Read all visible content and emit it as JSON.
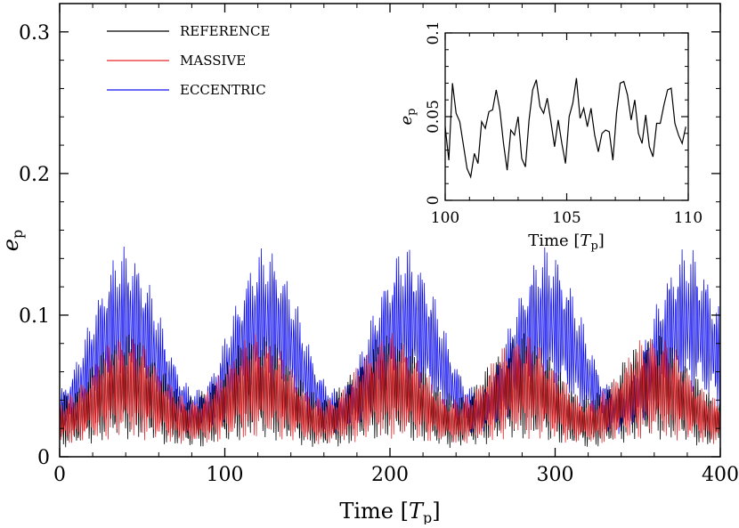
{
  "chart_data": [
    {
      "type": "line",
      "xlabel": "Time [T_p]",
      "xlabel_parts": {
        "main": "Time [",
        "var": "T",
        "sub": "p",
        "close": "]"
      },
      "ylabel_parts": {
        "var": "e",
        "sub": "p"
      },
      "xlim": [
        0,
        400
      ],
      "ylim": [
        0,
        0.32
      ],
      "x_ticks": [
        0,
        100,
        200,
        300,
        400
      ],
      "x_tick_labels": [
        "0",
        "100",
        "200",
        "300",
        "400"
      ],
      "y_ticks": [
        0,
        0.1,
        0.2,
        0.3
      ],
      "y_tick_labels": [
        "0",
        "0.1",
        "0.2",
        "0.3"
      ],
      "grid": false,
      "legend_position": "top-left",
      "series": [
        {
          "name": "REFERENCE",
          "color": "#000000",
          "mean_period": 80,
          "mean_min": 0.025,
          "mean_max": 0.05,
          "oscillation_period": 1.3,
          "oscillation_amplitude_min": 0.014,
          "oscillation_amplitude_max": 0.028
        },
        {
          "name": "MASSIVE",
          "color": "#e8262b",
          "mean_period": 80,
          "mean_min": 0.025,
          "mean_max": 0.05,
          "oscillation_period": 1.3,
          "oscillation_amplitude_min": 0.012,
          "oscillation_amplitude_max": 0.028
        },
        {
          "name": "ECCENTRIC",
          "color": "#1010ee",
          "mean_period": 85,
          "mean_min": 0.032,
          "mean_max": 0.095,
          "oscillation_period": 1.3,
          "oscillation_amplitude_min": 0.012,
          "oscillation_amplitude_max": 0.04
        }
      ]
    },
    {
      "type": "line",
      "panel": "inset",
      "xlabel": "Time [T_p]",
      "xlabel_parts": {
        "main": "Time [",
        "var": "T",
        "sub": "p",
        "close": "]"
      },
      "ylabel_parts": {
        "var": "e",
        "sub": "p"
      },
      "xlim": [
        100,
        110
      ],
      "ylim": [
        0,
        0.1
      ],
      "x_ticks": [
        100,
        105,
        110
      ],
      "x_tick_labels": [
        "100",
        "105",
        "110"
      ],
      "y_ticks": [
        0,
        0.05,
        0.1
      ],
      "y_tick_labels": [
        "0",
        "0.05",
        "0.1"
      ],
      "series": [
        {
          "name": "REFERENCE",
          "color": "#000000",
          "x": [
            100.0,
            100.15,
            100.3,
            100.45,
            100.6,
            100.75,
            100.9,
            101.05,
            101.2,
            101.35,
            101.5,
            101.65,
            101.8,
            101.95,
            102.1,
            102.25,
            102.4,
            102.55,
            102.7,
            102.85,
            103.0,
            103.15,
            103.3,
            103.45,
            103.6,
            103.75,
            103.9,
            104.05,
            104.2,
            104.35,
            104.5,
            104.65,
            104.8,
            104.95,
            105.1,
            105.25,
            105.4,
            105.55,
            105.7,
            105.85,
            106.0,
            106.15,
            106.3,
            106.45,
            106.6,
            106.75,
            106.9,
            107.05,
            107.2,
            107.35,
            107.5,
            107.65,
            107.8,
            107.95,
            108.1,
            108.25,
            108.4,
            108.55,
            108.7,
            108.85,
            109.0,
            109.15,
            109.3,
            109.45,
            109.6,
            109.75,
            109.9
          ],
          "y": [
            0.044,
            0.024,
            0.07,
            0.052,
            0.047,
            0.033,
            0.019,
            0.014,
            0.028,
            0.022,
            0.047,
            0.043,
            0.053,
            0.054,
            0.066,
            0.054,
            0.034,
            0.018,
            0.042,
            0.039,
            0.05,
            0.025,
            0.02,
            0.048,
            0.066,
            0.072,
            0.056,
            0.052,
            0.061,
            0.047,
            0.032,
            0.048,
            0.034,
            0.022,
            0.05,
            0.058,
            0.073,
            0.049,
            0.055,
            0.044,
            0.055,
            0.039,
            0.029,
            0.04,
            0.042,
            0.041,
            0.024,
            0.052,
            0.07,
            0.071,
            0.063,
            0.048,
            0.06,
            0.04,
            0.034,
            0.051,
            0.032,
            0.026,
            0.046,
            0.046,
            0.057,
            0.066,
            0.067,
            0.046,
            0.039,
            0.034,
            0.044
          ]
        }
      ]
    }
  ]
}
